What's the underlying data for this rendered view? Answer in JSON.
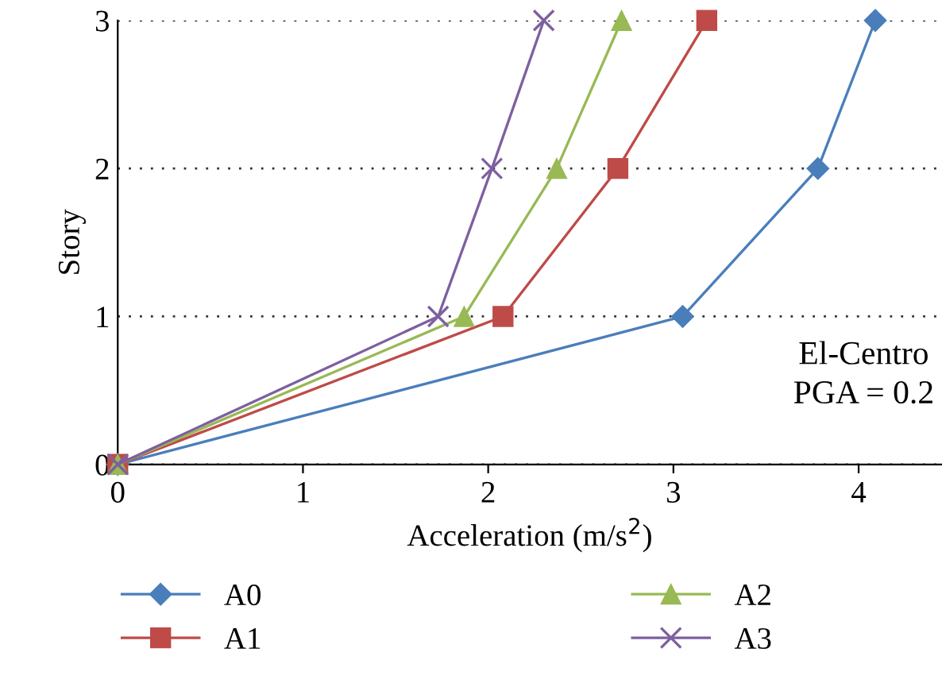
{
  "chart_data": {
    "type": "line",
    "xlabel": "Acceleration (m/s$^{2}$)",
    "ylabel": "Story",
    "xlim": [
      0,
      4.45
    ],
    "xticks": [
      0,
      1,
      2,
      3,
      4
    ],
    "ylim": [
      0,
      3
    ],
    "yticks": [
      0,
      1,
      2,
      3
    ],
    "grid": "y",
    "legend": "bottom",
    "annotations": [
      "El-Centro\nPGA = 0.2"
    ],
    "series": [
      {
        "name": "A0",
        "color": "#4a7ebb",
        "marker": "diamond",
        "x": [
          0,
          3.05,
          3.78,
          4.09
        ],
        "values": [
          0,
          1,
          2,
          3
        ]
      },
      {
        "name": "A1",
        "color": "#be4b48",
        "marker": "square",
        "x": [
          0,
          2.08,
          2.7,
          3.18
        ],
        "values": [
          0,
          1,
          2,
          3
        ]
      },
      {
        "name": "A2",
        "color": "#98b954",
        "marker": "triangle",
        "x": [
          0,
          1.87,
          2.37,
          2.72
        ],
        "values": [
          0,
          1,
          2,
          3
        ]
      },
      {
        "name": "A3",
        "color": "#7d60a0",
        "marker": "cross",
        "x": [
          0,
          1.73,
          2.02,
          2.3
        ],
        "values": [
          0,
          1,
          2,
          3
        ]
      }
    ]
  }
}
